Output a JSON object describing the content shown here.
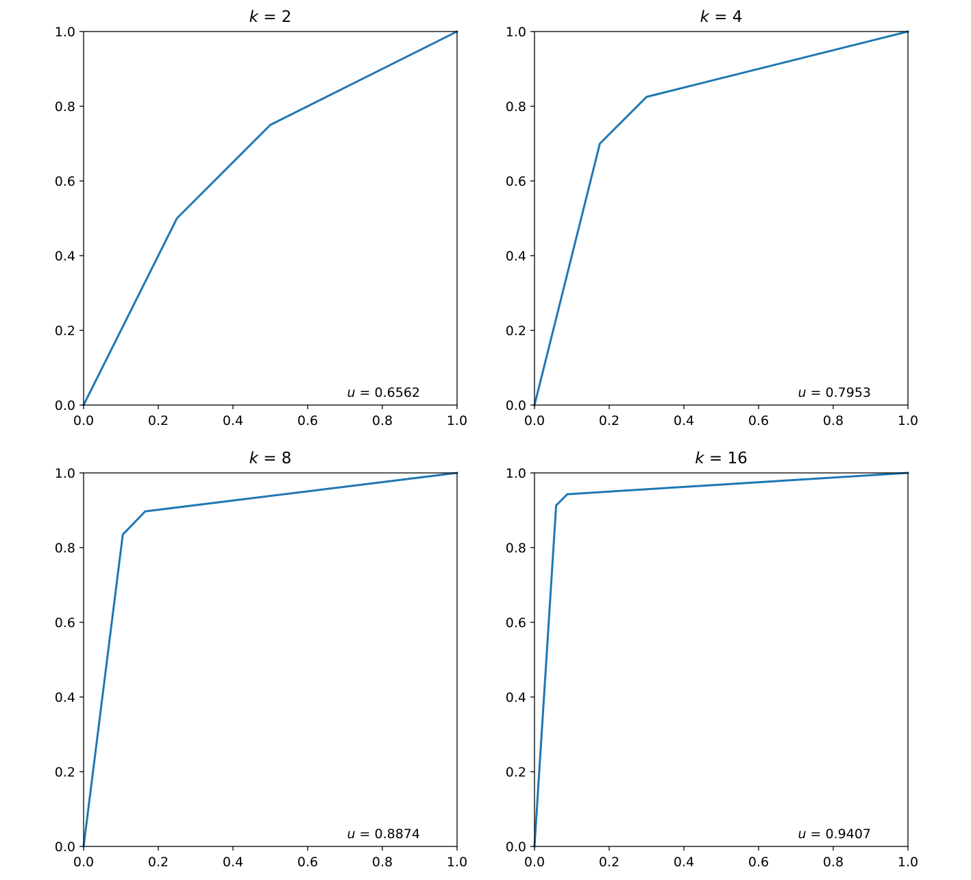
{
  "chart_data": [
    {
      "type": "line",
      "title": {
        "var": "k",
        "value": "2"
      },
      "annotation": {
        "var": "u",
        "value": "0.6562"
      },
      "xlim": [
        0,
        1
      ],
      "ylim": [
        0,
        1
      ],
      "xticks": [
        "0.0",
        "0.2",
        "0.4",
        "0.6",
        "0.8",
        "1.0"
      ],
      "yticks": [
        "0.0",
        "0.2",
        "0.4",
        "0.6",
        "0.8",
        "1.0"
      ],
      "series": [
        {
          "color": "#1f77b4",
          "x": [
            0,
            0.25,
            0.5,
            1.0
          ],
          "y": [
            0,
            0.5,
            0.75,
            1.0
          ]
        }
      ]
    },
    {
      "type": "line",
      "title": {
        "var": "k",
        "value": "4"
      },
      "annotation": {
        "var": "u",
        "value": "0.7953"
      },
      "xlim": [
        0,
        1
      ],
      "ylim": [
        0,
        1
      ],
      "xticks": [
        "0.0",
        "0.2",
        "0.4",
        "0.6",
        "0.8",
        "1.0"
      ],
      "yticks": [
        "0.0",
        "0.2",
        "0.4",
        "0.6",
        "0.8",
        "1.0"
      ],
      "series": [
        {
          "color": "#1f77b4",
          "x": [
            0,
            0.175,
            0.3,
            1.0
          ],
          "y": [
            0,
            0.7,
            0.825,
            1.0
          ]
        }
      ]
    },
    {
      "type": "line",
      "title": {
        "var": "k",
        "value": "8"
      },
      "annotation": {
        "var": "u",
        "value": "0.8874"
      },
      "xlim": [
        0,
        1
      ],
      "ylim": [
        0,
        1
      ],
      "xticks": [
        "0.0",
        "0.2",
        "0.4",
        "0.6",
        "0.8",
        "1.0"
      ],
      "yticks": [
        "0.0",
        "0.2",
        "0.4",
        "0.6",
        "0.8",
        "1.0"
      ],
      "series": [
        {
          "color": "#1f77b4",
          "x": [
            0,
            0.105,
            0.165,
            1.0
          ],
          "y": [
            0,
            0.835,
            0.897,
            1.0
          ]
        }
      ]
    },
    {
      "type": "line",
      "title": {
        "var": "k",
        "value": "16"
      },
      "annotation": {
        "var": "u",
        "value": "0.9407"
      },
      "xlim": [
        0,
        1
      ],
      "ylim": [
        0,
        1
      ],
      "xticks": [
        "0.0",
        "0.2",
        "0.4",
        "0.6",
        "0.8",
        "1.0"
      ],
      "yticks": [
        "0.0",
        "0.2",
        "0.4",
        "0.6",
        "0.8",
        "1.0"
      ],
      "series": [
        {
          "color": "#1f77b4",
          "x": [
            0,
            0.058,
            0.088,
            1.0
          ],
          "y": [
            0,
            0.913,
            0.943,
            1.0
          ]
        }
      ]
    }
  ]
}
